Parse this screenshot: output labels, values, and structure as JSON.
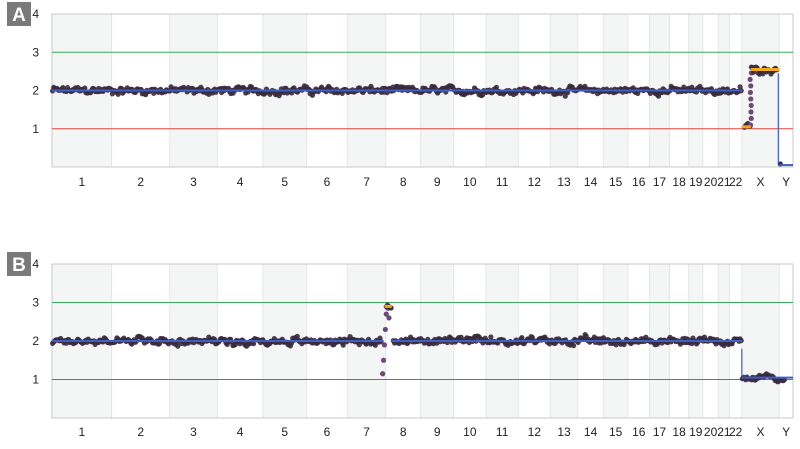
{
  "chart_data": [
    {
      "type": "scatter",
      "panel_label": "A",
      "ylim": [
        0,
        4
      ],
      "yticks": [
        "1",
        "2",
        "3",
        "4"
      ],
      "reference_lines": [
        {
          "y": 1,
          "color": "#e0443a"
        },
        {
          "y": 3,
          "color": "#3aaa5c"
        }
      ],
      "categories": [
        "1",
        "2",
        "3",
        "4",
        "5",
        "6",
        "7",
        "8",
        "9",
        "10",
        "11",
        "12",
        "13",
        "14",
        "15",
        "16",
        "17",
        "18",
        "19",
        "20",
        "21",
        "22",
        "X",
        "Y"
      ],
      "segments": [
        {
          "start": "1",
          "end": "22",
          "value": 2.0
        },
        {
          "start": "X",
          "end": "X",
          "value": 1.05,
          "portion": [
            0.0,
            0.24
          ]
        },
        {
          "start": "X",
          "end": "X",
          "value": 2.55,
          "portion": [
            0.24,
            1.0
          ]
        },
        {
          "start": "Y",
          "end": "Y",
          "value": 0.05
        }
      ],
      "series_points_color": "#3a2a3e",
      "segment_color": "#3f5fc8",
      "highlight_color": "#f5a623"
    },
    {
      "type": "scatter",
      "panel_label": "B",
      "ylim": [
        0,
        4
      ],
      "yticks": [
        "1",
        "2",
        "3",
        "4"
      ],
      "reference_lines": [
        {
          "y": 1,
          "color": "#e0443a"
        },
        {
          "y": 3,
          "color": "#3aaa5c"
        }
      ],
      "categories": [
        "1",
        "2",
        "3",
        "4",
        "5",
        "6",
        "7",
        "8",
        "9",
        "10",
        "11",
        "12",
        "13",
        "14",
        "15",
        "16",
        "17",
        "18",
        "19",
        "20",
        "21",
        "22",
        "X",
        "Y"
      ],
      "segments": [
        {
          "start": "1",
          "end": "7",
          "value": 2.0,
          "portion_of_end": 0.92
        },
        {
          "start": "7",
          "end": "8",
          "value": 2.9,
          "note": "short gain at chr7/8 boundary"
        },
        {
          "start": "8",
          "end": "22",
          "value": 2.0
        },
        {
          "start": "X",
          "end": "Y",
          "value": 1.05
        }
      ],
      "series_points_color": "#3a2a3e",
      "segment_color": "#3f5fc8",
      "highlight_color": "#f5a623"
    }
  ]
}
